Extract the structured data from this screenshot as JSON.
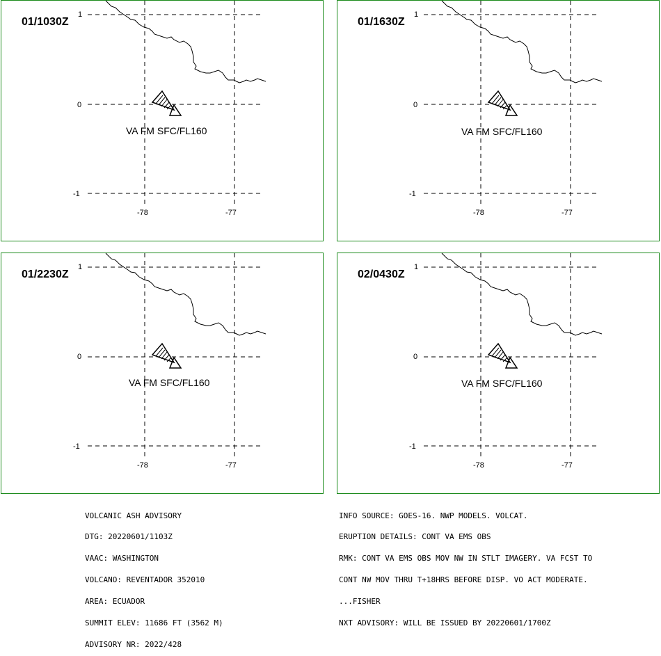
{
  "panels": [
    {
      "id": "tl",
      "title": "01/1030Z",
      "superscript": "1",
      "lat_labels": [
        "0",
        "-1"
      ],
      "lon_labels": [
        "-78",
        "-77"
      ],
      "ash_label": "VA FM SFC/FL160"
    },
    {
      "id": "tr",
      "title": "01/1630Z",
      "superscript": "1",
      "lat_labels": [
        "0",
        "-1"
      ],
      "lon_labels": [
        "-78",
        "-77"
      ],
      "ash_label": "VA FM SFC/FL160"
    },
    {
      "id": "bl",
      "title": "01/2230Z",
      "superscript": "1",
      "lat_labels": [
        "0",
        "-1"
      ],
      "lon_labels": [
        "-78",
        "-77"
      ],
      "ash_label": "VA FM SFC/FL160"
    },
    {
      "id": "br",
      "title": "02/0430Z",
      "superscript": "1",
      "lat_labels": [
        "0",
        "-1"
      ],
      "lon_labels": [
        "-78",
        "-77"
      ],
      "ash_label": "VA FM SFC/FL160"
    }
  ],
  "advisory_left": [
    "VOLCANIC ASH ADVISORY",
    "DTG: 20220601/1103Z",
    "VAAC: WASHINGTON",
    "VOLCANO: REVENTADOR 352010",
    "AREA: ECUADOR",
    "SUMMIT ELEV: 11686 FT (3562 M)",
    "ADVISORY NR: 2022/428"
  ],
  "advisory_right": [
    "INFO SOURCE: GOES-16. NWP MODELS. VOLCAT.",
    "ERUPTION DETAILS: CONT VA EMS OBS",
    "RMK: CONT VA EMS OBS MOV NW IN STLT IMAGERY. VA FCST TO",
    "CONT NW MOV THRU T+18HRS BEFORE DISP. VO ACT MODERATE.",
    "...FISHER",
    "NXT ADVISORY: WILL BE ISSUED BY 20220601/1700Z"
  ],
  "colors": {
    "panel_border": "#1a8a1a",
    "lines": "#000000",
    "background": "#ffffff"
  }
}
